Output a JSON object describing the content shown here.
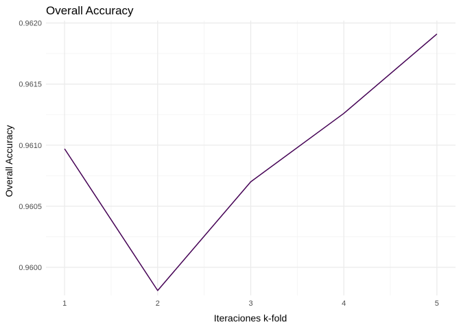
{
  "chart_data": {
    "type": "line",
    "title": "Overall Accuracy",
    "xlabel": "Iteraciones k-fold",
    "ylabel": "Overall Accuracy",
    "x": [
      1,
      2,
      3,
      4,
      5
    ],
    "series": [
      {
        "values": [
          0.96097,
          0.95981,
          0.9607,
          0.96126,
          0.96191
        ]
      }
    ],
    "xlim": [
      0.8,
      5.2
    ],
    "ylim": [
      0.95977,
      0.96202
    ],
    "x_ticks": [
      1,
      2,
      3,
      4,
      5
    ],
    "x_tick_labels": [
      "1",
      "2",
      "3",
      "4",
      "5"
    ],
    "y_ticks": [
      0.96,
      0.9605,
      0.961,
      0.9615,
      0.962
    ],
    "y_tick_labels": [
      "0.9600",
      "0.9605",
      "0.9610",
      "0.9615",
      "0.9620"
    ],
    "grid": true,
    "line_color": "#440154",
    "grid_major_color": "#ebebeb",
    "grid_minor_color": "#f5f5f5"
  }
}
